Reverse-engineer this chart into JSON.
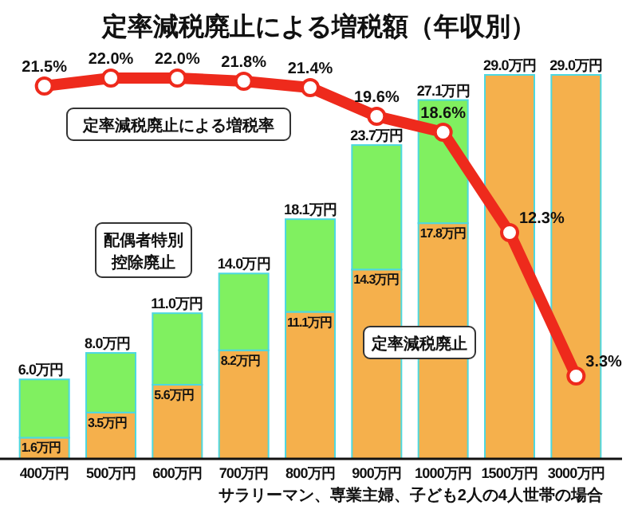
{
  "chart_data": {
    "type": "bar",
    "title": "定率減税廃止による増税額（年収別）",
    "categories": [
      "400万円",
      "500万円",
      "600万円",
      "700万円",
      "800万円",
      "900万円",
      "1000万円",
      "1500万円",
      "3000万円"
    ],
    "stacked": true,
    "series": [
      {
        "name": "定率減税廃止",
        "color": "#f5b04c",
        "values": [
          1.6,
          3.5,
          5.6,
          8.2,
          11.1,
          14.3,
          17.8,
          29.0,
          29.0
        ],
        "value_labels": [
          "1.6万円",
          "3.5万円",
          "5.6万円",
          "8.2万円",
          "11.1万円",
          "14.3万円",
          "17.8万円",
          null,
          null
        ]
      },
      {
        "name": "配偶者特別控除廃止",
        "color": "#80f060",
        "values": [
          4.4,
          4.5,
          5.4,
          5.8,
          7.0,
          9.4,
          9.3,
          null,
          null
        ]
      },
      {
        "name": "定率減税廃止による増税率",
        "type": "line",
        "axis": "y2",
        "color": "#ee2a1c",
        "marker": "circle",
        "values": [
          21.5,
          22.0,
          22.0,
          21.8,
          21.4,
          19.6,
          18.6,
          12.3,
          3.3
        ],
        "value_labels": [
          "21.5%",
          "22.0%",
          "22.0%",
          "21.8%",
          "21.4%",
          "19.6%",
          "18.6%",
          "12.3%",
          "3.3%"
        ]
      }
    ],
    "totals": [
      "6.0万円",
      "8.0万円",
      "11.0万円",
      "14.0万円",
      "18.1万円",
      "23.7万円",
      "27.1万円",
      "29.0万円",
      "29.0万円"
    ],
    "annotations": [
      "サラリーマン、専業主婦、子ども2人の4人世帯の場合"
    ]
  }
}
